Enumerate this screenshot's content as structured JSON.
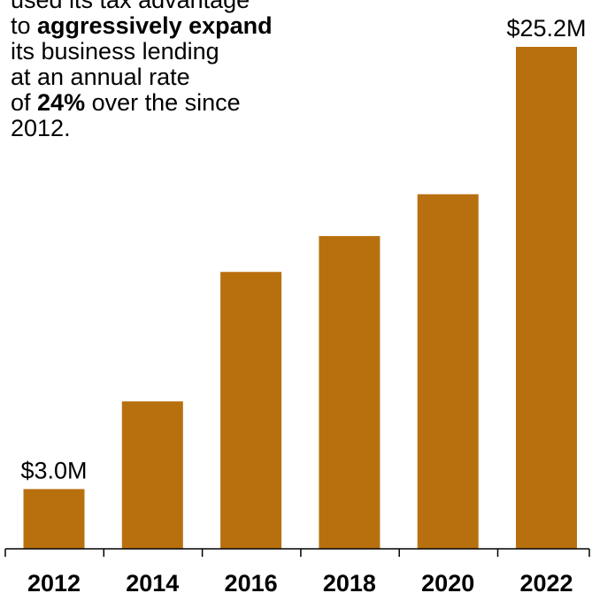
{
  "annotation": {
    "line1": "used its tax advantage",
    "line2_pre": "to ",
    "line2_bold": "aggressively expand",
    "line3": "its business lending",
    "line4": "at an annual rate",
    "line5_pre": "of ",
    "line5_bold": "24%",
    "line5_post": " over the since",
    "line6": "2012."
  },
  "chart_data": {
    "type": "bar",
    "title": "",
    "xlabel": "",
    "ylabel": "",
    "categories": [
      "2012",
      "2014",
      "2016",
      "2018",
      "2020",
      "2022"
    ],
    "values": [
      3.0,
      7.4,
      13.9,
      15.7,
      17.8,
      25.2
    ],
    "units": "$M",
    "ylim": [
      0,
      27
    ],
    "data_labels": [
      {
        "category": "2012",
        "text": "$3.0M"
      },
      {
        "category": "2022",
        "text": "$25.2M"
      }
    ],
    "grid": false,
    "legend": "none",
    "bar_color": "#B8700F",
    "axis_color": "#000000"
  }
}
